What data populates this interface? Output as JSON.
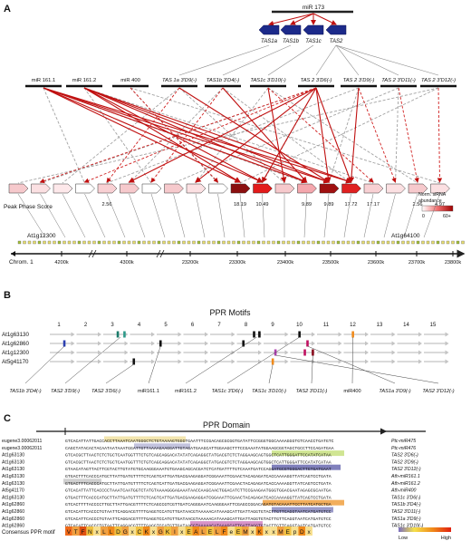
{
  "panels": {
    "a": "A",
    "b": "B",
    "c": "C"
  },
  "panel_a": {
    "mir173": "miR 173",
    "tas_loci": [
      "TAS1a",
      "TAS1b",
      "TAS1c",
      "TAS2"
    ],
    "small_rnas": [
      "miR 161.1",
      "miR 161.2",
      "miR 400",
      "TAS 1a 3'D9(-)",
      "TAS1b 3'D4(-)",
      "TAS1c 3'D10(-)",
      "TAS 2 3'D6(-)",
      "TAS 2 3'D9(-)",
      "TAS 2 3'D11(-)",
      "TAS 2 3'D12(-)"
    ],
    "peak_phase_label": "Peak Phase Score",
    "phase_scores": [
      "2.56",
      "18.19",
      "10.49",
      "9.89",
      "9.89",
      "17.72",
      "17.17",
      "2.56",
      "4.97"
    ],
    "norm_label": "Norm. siRNA abundance",
    "legend_min": "0",
    "legend_max": "60+",
    "gene_left": "At1g12300",
    "gene_right": "At1g64100",
    "chrom_label": "Chrom. 1",
    "coords": [
      "4200k",
      "4300k",
      "23200k",
      "23300k",
      "23400k",
      "23500k",
      "23600k",
      "23700k",
      "23800k"
    ]
  },
  "panel_b": {
    "title": "PPR Motifs",
    "motif_numbers": [
      "1",
      "2",
      "3",
      "4",
      "5",
      "6",
      "7",
      "8",
      "9",
      "10",
      "11",
      "12",
      "13",
      "14",
      "15"
    ],
    "genes": [
      "At1g63130",
      "At1g62860",
      "At1g12300",
      "At5g41170"
    ],
    "targets": [
      "TAS1b 3'D4(-)",
      "TAS2 3'D9(-)",
      "TAS2 3'D6(-)",
      "miR161.1",
      "miR161.2",
      "TAS1c 3'D6(-)",
      "TAS1c 3'D10(-)",
      "TAS2 3'D11(-)",
      "miR400",
      "TAS1a 3'D9(-)",
      "TAS2 3'D12(-)"
    ]
  },
  "panel_c": {
    "domain_label": "PPR Domain",
    "rows": [
      {
        "id": "eugene3.00062011",
        "seq": "GTCACATTATTGACCACCTTAAATCAATGGGCTCTGTAAAAGTGGGTGAATTTCCGACAGCGCGGTGATATTCCGGGTGGCAAAAGGGTGTCAACCTGATGTC",
        "label": "Ptc-miR475"
      },
      {
        "id": "eugene3.00062011",
        "seq": "CAGCTATACACTACAATAATAAATGGATTGTTAAAAGAAGGATTGTAGATGAAGCATTGGAAGCTTTCCGAAATATGGAAGCGGTAGCTGCCTTCCAGATGAA",
        "label": "Ptc-miR476"
      },
      {
        "id": "At1g63130",
        "seq": "GTCACGCTTAACTCTCTGCTCAATGGTTTCTGTCAGCAGGACATATATCAGAGGCTATGACGTCTCTAGGAAGCAGTGGCTCATTGGGATTCCATATCATAA",
        "label": "TAS2 3'D6(-)"
      },
      {
        "id": "At1g63130",
        "seq": "GTCACGCTTAACTCTCTGCTCAATGGTTTCTGTCAGCAGGACATATATCAGAGGCTATGACGTCTCTAGGAAGCAGTGGCTCATTGGGATTCCATATCATAA",
        "label": "TAS2 3'D9(-)"
      },
      {
        "id": "At1g63130",
        "seq": "GTAACATAGTTACTTCGTACTTGTATGTGCAAGGGAAATGTGAAGCAGCACGATCTCATGATTTTGTCAAATGATCCAGGATGCGTGGGACTTGTGATGAAT",
        "label": "TAS2 3'D12(-)"
      },
      {
        "id": "At1g63130",
        "seq": "GTGACTTTCACCCATGCTTATTGATGTTTTCTCAGTCATTGATGACGAAGAGGATCGGAAATTCGAACTACAGAGATCACCAAAAGGTTATCAGTCCTGATA",
        "label": "Ath-miR161.1"
      },
      {
        "id": "At1g63130",
        "seq": "GTGACTTTCACCCATGCTTATTGATGTTTTCTCAGTCATTGATGACGAAGAGGATCGGAAATTCGAACTACAGAGATCACCAAAAGGTTATCAGTCCTGATA",
        "label": "Ath-miR161.2"
      },
      {
        "id": "At5g41170",
        "seq": "GTCACATTATTCACCCCTAAATCAATGGTCTATGTAAAAGGGAGAAATAACCAAGCAACTGGACATCTTCCGAAGAATGGGTGGACGAATAGAGCGCAATGA",
        "label": "Ath-miR400"
      },
      {
        "id": "At1g63130",
        "seq": "GTGACTTTCACCCATGCTTATTGATGTTTTCTCAGTCATTGATGACGAAGAGGATCGGAAATTCGAACTACAGAGATCACCAAAAGGTTATCAGTCCTGATA",
        "label": "TAS1c 3'D6(-)"
      },
      {
        "id": "At1g62860",
        "seq": "GTCACTTTTACCCCTTGCTTATTGACGTTTTCTCAGCCGTCGTTGATCAGGGAATCAAGGGAATTCGAGCCGGACAGATGTACAAATTCCTTATCATGCTGA",
        "label": "TAS1b 3'D4(-)"
      },
      {
        "id": "At1g62860",
        "seq": "GTCACATTCACCCTGTAATTCAGGACGTTTTGAGGTCCATGTTGATAACGTAAAAACATAAAGCATTGATTAGGTGTACTTGTTCAGGTAATCATGATGTCC",
        "label": "TAS2 3'D11(-)"
      },
      {
        "id": "At1g62860",
        "seq": "GTCACATTCACCCTGTAATTCAGGACGTTTTGAGGTCCATGTTGATAACGTAAAAACATAAAGCATTGATTAGGTGTACTTGTTCAGGTAATCATGATGTCC",
        "label": "TAS1a 3'D9(-)"
      },
      {
        "id": "At1g62860",
        "seq": "GTCACATTCACCCTGTAATTCAGGACGTTTTGAGGTCCATGTTGATAACGTAAAAACATAAAGCATTGATTAGGTGTACTTGTTCAGGTAATCATGATGTCC",
        "label": "TAS1c 3'D10(-)"
      }
    ],
    "consensus_label": "Consensus PPR motif",
    "consensus": [
      "V",
      "T",
      "F",
      "N",
      "x",
      "L",
      "L",
      "D",
      "G",
      "x",
      "C",
      "K",
      "x",
      "G",
      "K",
      "I",
      "x",
      "E",
      "A",
      "L",
      "E",
      "L",
      "F",
      "e",
      "E",
      "M",
      "x",
      "K",
      "x",
      "x",
      "M",
      "E",
      "p",
      "D",
      "x"
    ],
    "legend_low": "Low",
    "legend_high": "High"
  },
  "colors": {
    "dark_red": "#9a1010",
    "red": "#e02020",
    "navy": "#1c2a8a",
    "grey_dash": "#9a9a9a"
  }
}
